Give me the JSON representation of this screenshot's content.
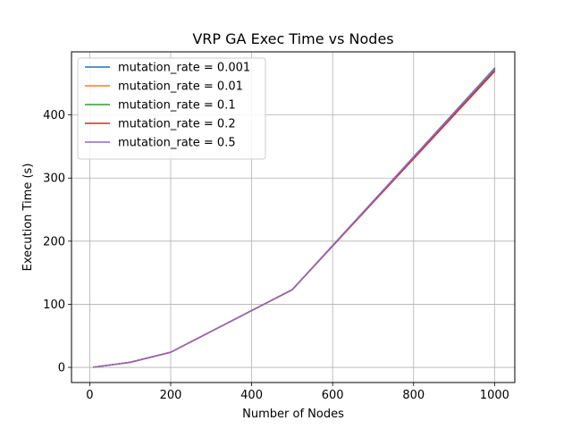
{
  "chart_data": {
    "type": "line",
    "title": "VRP GA Exec Time vs Nodes",
    "xlabel": "Number of Nodes",
    "ylabel": "Execution Time (s)",
    "xlim": [
      -45,
      1050
    ],
    "ylim": [
      -24,
      500
    ],
    "xticks": [
      0,
      200,
      400,
      600,
      800,
      1000
    ],
    "yticks": [
      0,
      100,
      200,
      300,
      400
    ],
    "grid": true,
    "legend_position": "top-left",
    "x": [
      10,
      100,
      200,
      500,
      1000
    ],
    "series": [
      {
        "name": "mutation_rate = 0.001",
        "color": "#1f77b4",
        "values": [
          0.3,
          8,
          24,
          123,
          474
        ]
      },
      {
        "name": "mutation_rate = 0.01",
        "color": "#ff7f0e",
        "values": [
          0.3,
          8,
          24,
          123,
          471
        ]
      },
      {
        "name": "mutation_rate = 0.1",
        "color": "#2ca02c",
        "values": [
          0.3,
          8,
          24,
          123,
          472
        ]
      },
      {
        "name": "mutation_rate = 0.2",
        "color": "#d62728",
        "values": [
          0.3,
          8,
          24,
          123,
          469
        ]
      },
      {
        "name": "mutation_rate = 0.5",
        "color": "#9467bd",
        "values": [
          0.3,
          8,
          24,
          123,
          473
        ]
      }
    ]
  }
}
